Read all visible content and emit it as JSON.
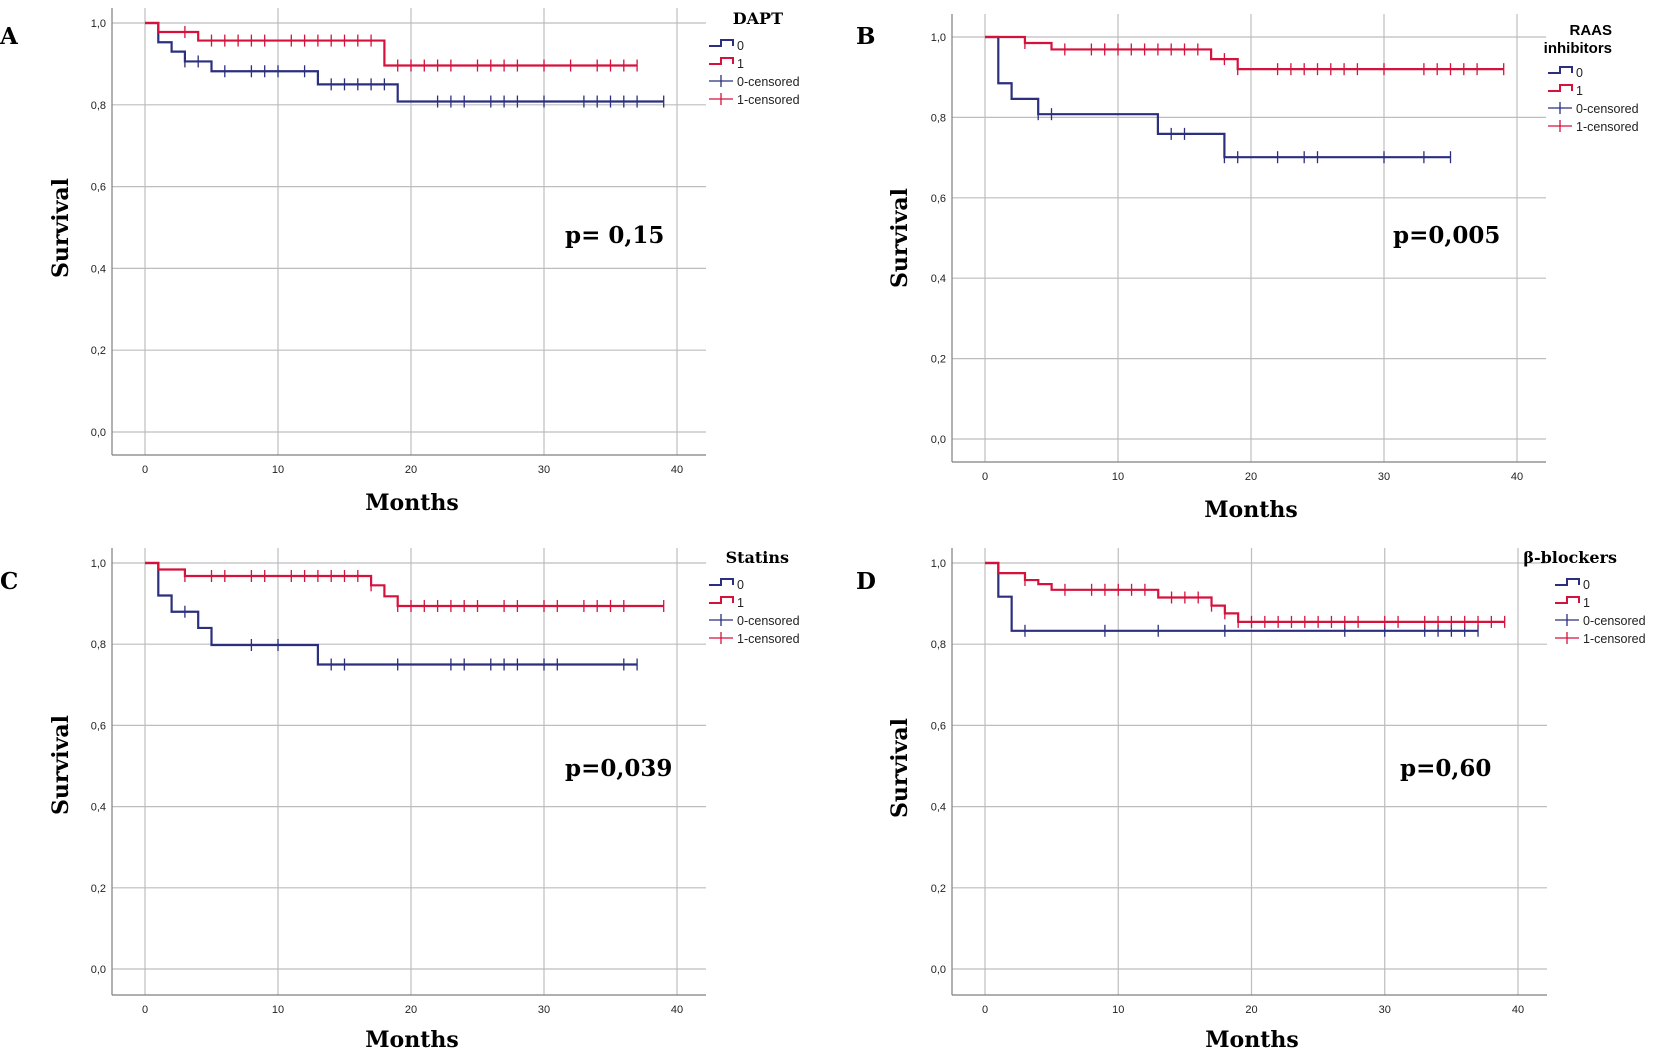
{
  "figure": {
    "colors": {
      "group0": "#2b2f7e",
      "group1": "#d4123c"
    },
    "legend_items": [
      "0",
      "1",
      "0-censored",
      "1-censored"
    ]
  },
  "chart_data": [
    {
      "type": "line",
      "panel": "A",
      "legend_title": "DAPT",
      "p_value_text": "p= 0,15",
      "xlabel": "Months",
      "ylabel": "Survival",
      "xlim": [
        -2,
        42
      ],
      "ylim": [
        -0.06,
        1.04
      ],
      "xticks": [
        0,
        10,
        20,
        30,
        40
      ],
      "yticks": [
        0.0,
        0.2,
        0.4,
        0.6,
        0.8,
        1.0
      ],
      "ytick_labels": [
        "0,0",
        "0,2",
        "0,4",
        "0,6",
        "0,8",
        "1,0"
      ],
      "series": [
        {
          "name": "0",
          "color": "#2b2f7e",
          "steps": [
            [
              0,
              1.0
            ],
            [
              1,
              0.953
            ],
            [
              2,
              0.93
            ],
            [
              3,
              0.906
            ],
            [
              5,
              0.882
            ],
            [
              13,
              0.85
            ],
            [
              19,
              0.808
            ],
            [
              39,
              0.808
            ]
          ],
          "censored": [
            3,
            4,
            6,
            8,
            9,
            10,
            12,
            14,
            15,
            16,
            17,
            18,
            22,
            23,
            24,
            26,
            27,
            28,
            30,
            33,
            34,
            35,
            36,
            37,
            39
          ]
        },
        {
          "name": "1",
          "color": "#d4123c",
          "steps": [
            [
              0,
              1.0
            ],
            [
              1,
              0.978
            ],
            [
              4,
              0.957
            ],
            [
              18,
              0.896
            ],
            [
              37,
              0.896
            ]
          ],
          "censored": [
            3,
            5,
            6,
            7,
            8,
            9,
            11,
            12,
            13,
            14,
            15,
            16,
            17,
            19,
            20,
            21,
            22,
            23,
            25,
            26,
            27,
            28,
            30,
            32,
            34,
            35,
            36,
            37
          ]
        }
      ]
    },
    {
      "type": "line",
      "panel": "B",
      "legend_title": [
        "RAAS",
        "inhibitors"
      ],
      "p_value_text": "p=0,005",
      "xlabel": "Months",
      "ylabel": "Survival",
      "xlim": [
        -2,
        42
      ],
      "ylim": [
        -0.06,
        1.04
      ],
      "xticks": [
        0,
        10,
        20,
        30,
        40
      ],
      "yticks": [
        0.0,
        0.2,
        0.4,
        0.6,
        0.8,
        1.0
      ],
      "ytick_labels": [
        "0,0",
        "0,2",
        "0,4",
        "0,6",
        "0,8",
        "1,0"
      ],
      "series": [
        {
          "name": "0",
          "color": "#2b2f7e",
          "steps": [
            [
              0,
              1.0
            ],
            [
              1,
              0.885
            ],
            [
              2,
              0.846
            ],
            [
              4,
              0.808
            ],
            [
              13,
              0.759
            ],
            [
              18,
              0.701
            ],
            [
              35,
              0.701
            ]
          ],
          "censored": [
            4,
            5,
            14,
            15,
            18,
            19,
            22,
            24,
            25,
            30,
            33,
            35
          ]
        },
        {
          "name": "1",
          "color": "#d4123c",
          "steps": [
            [
              0,
              1.0
            ],
            [
              3,
              0.985
            ],
            [
              5,
              0.969
            ],
            [
              17,
              0.945
            ],
            [
              19,
              0.92
            ],
            [
              39,
              0.92
            ]
          ],
          "censored": [
            3,
            6,
            8,
            9,
            10,
            11,
            12,
            13,
            14,
            15,
            16,
            18,
            19,
            22,
            23,
            24,
            25,
            26,
            27,
            28,
            30,
            33,
            34,
            35,
            36,
            37,
            39
          ]
        }
      ]
    },
    {
      "type": "line",
      "panel": "C",
      "legend_title": "Statins",
      "p_value_text": "p=0,039",
      "xlabel": "Months",
      "ylabel": "Survival",
      "xlim": [
        -2,
        42
      ],
      "ylim": [
        -0.06,
        1.04
      ],
      "xticks": [
        0,
        10,
        20,
        30,
        40
      ],
      "yticks": [
        0.0,
        0.2,
        0.4,
        0.6,
        0.8,
        1.0
      ],
      "ytick_labels": [
        "0,0",
        "0,2",
        "0,4",
        "0,6",
        "0,8",
        "1,0"
      ],
      "series": [
        {
          "name": "0",
          "color": "#2b2f7e",
          "steps": [
            [
              0,
              1.0
            ],
            [
              1,
              0.92
            ],
            [
              2,
              0.88
            ],
            [
              4,
              0.84
            ],
            [
              5,
              0.798
            ],
            [
              13,
              0.75
            ],
            [
              37,
              0.75
            ]
          ],
          "censored": [
            3,
            8,
            10,
            14,
            15,
            19,
            23,
            24,
            26,
            27,
            28,
            30,
            31,
            36,
            37
          ]
        },
        {
          "name": "1",
          "color": "#d4123c",
          "steps": [
            [
              0,
              1.0
            ],
            [
              1,
              0.984
            ],
            [
              3,
              0.968
            ],
            [
              17,
              0.945
            ],
            [
              18,
              0.918
            ],
            [
              19,
              0.894
            ],
            [
              39,
              0.894
            ]
          ],
          "censored": [
            3,
            5,
            6,
            8,
            9,
            11,
            12,
            13,
            14,
            15,
            16,
            17,
            19,
            20,
            21,
            22,
            23,
            24,
            25,
            27,
            28,
            30,
            31,
            33,
            34,
            35,
            36,
            39
          ]
        }
      ]
    },
    {
      "type": "line",
      "panel": "D",
      "legend_title": "β-blockers",
      "p_value_text": "p=0,60",
      "xlabel": "Months",
      "ylabel": "Survival",
      "xlim": [
        -2,
        42
      ],
      "ylim": [
        -0.06,
        1.04
      ],
      "xticks": [
        0,
        10,
        20,
        30,
        40
      ],
      "yticks": [
        0.0,
        0.2,
        0.4,
        0.6,
        0.8,
        1.0
      ],
      "ytick_labels": [
        "0,0",
        "0,2",
        "0,4",
        "0,6",
        "0,8",
        "1,0"
      ],
      "series": [
        {
          "name": "0",
          "color": "#2b2f7e",
          "steps": [
            [
              0,
              1.0
            ],
            [
              1,
              0.917
            ],
            [
              2,
              0.833
            ],
            [
              37,
              0.833
            ]
          ],
          "censored": [
            3,
            9,
            13,
            18,
            27,
            30,
            33,
            34,
            35,
            36,
            37
          ]
        },
        {
          "name": "1",
          "color": "#d4123c",
          "steps": [
            [
              0,
              1.0
            ],
            [
              1,
              0.975
            ],
            [
              3,
              0.958
            ],
            [
              4,
              0.948
            ],
            [
              5,
              0.934
            ],
            [
              13,
              0.915
            ],
            [
              17,
              0.895
            ],
            [
              18,
              0.876
            ],
            [
              19,
              0.855
            ],
            [
              39,
              0.855
            ]
          ],
          "censored": [
            3,
            6,
            8,
            9,
            10,
            11,
            12,
            14,
            15,
            16,
            17,
            18,
            19,
            20,
            21,
            22,
            23,
            24,
            25,
            26,
            27,
            28,
            30,
            31,
            33,
            34,
            35,
            36,
            37,
            38,
            39
          ]
        }
      ]
    }
  ]
}
